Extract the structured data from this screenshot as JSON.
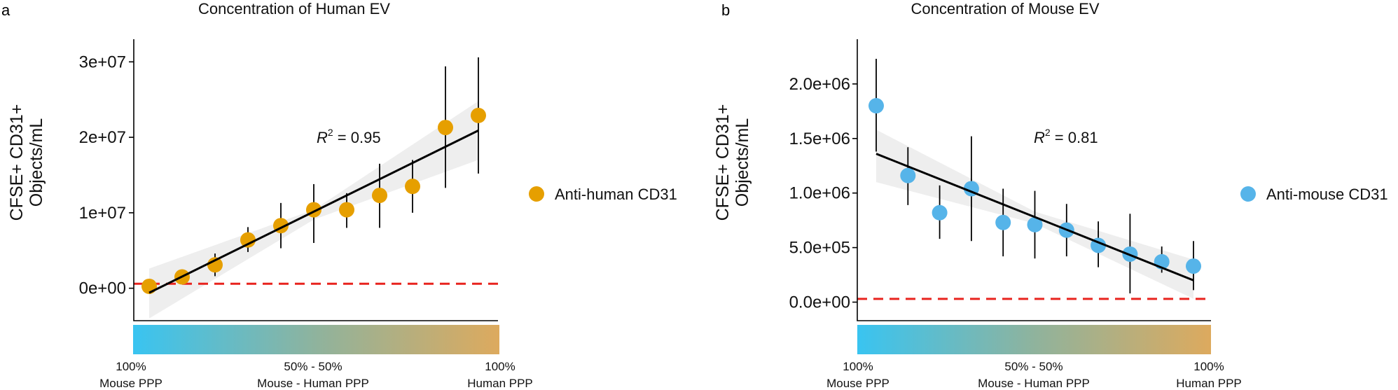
{
  "gradient_labels": {
    "left_line1": "100%",
    "left_line2": "Mouse PPP",
    "mid_line1": "50% - 50%",
    "mid_line2": "Mouse - Human PPP",
    "right_line1": "100%",
    "right_line2": "Human PPP"
  },
  "colors": {
    "human": "#E69F00",
    "mouse": "#56B4E9",
    "threshold": "#E8231E",
    "fit": "#000000",
    "ribbon": "#EBEBEB",
    "gradient_left": "#39C4F1",
    "gradient_mid": "#8FB39D",
    "gradient_right": "#DDAA5E"
  },
  "chart_data": [
    {
      "panel": "a",
      "type": "scatter",
      "title": "Concentration of Human EV",
      "ylabel_line1": "CFSE+ CD31+",
      "ylabel_line2": "Objects/mL",
      "xlabel": "",
      "ylim": [
        -4300000,
        33000000
      ],
      "yticks": [
        0,
        10000000,
        20000000,
        30000000
      ],
      "ytick_labels": [
        "0e+00",
        "1e+07",
        "2e+07",
        "3e+07"
      ],
      "legend": "Anti-human CD31",
      "r2_label": "0.95",
      "x": [
        1,
        2,
        3,
        4,
        5,
        6,
        7,
        8,
        9,
        10,
        11
      ],
      "values": [
        250000,
        1500000,
        3100000,
        6400000,
        8300000,
        10400000,
        10400000,
        12300000,
        13500000,
        21300000,
        22900000
      ],
      "err_low": [
        null,
        null,
        1600000,
        4800000,
        5300000,
        6000000,
        8000000,
        8000000,
        10000000,
        13300000,
        15200000
      ],
      "err_high": [
        null,
        null,
        4600000,
        8100000,
        11300000,
        13800000,
        12600000,
        16500000,
        17000000,
        29400000,
        30600000
      ],
      "fit_start": -600000,
      "fit_end": 20900000,
      "ribbon_start": [
        -4000000,
        2600000
      ],
      "ribbon_mid": [
        9100000,
        10400000
      ],
      "ribbon_end": [
        17000000,
        24800000
      ],
      "threshold": 600000
    },
    {
      "panel": "b",
      "type": "scatter",
      "title": "Concentration of Mouse EV",
      "ylabel_line1": "CFSE+ CD31+",
      "ylabel_line2": "Objects/mL",
      "xlabel": "",
      "ylim": [
        -170000,
        2410000
      ],
      "yticks": [
        0,
        500000,
        1000000,
        1500000,
        2000000
      ],
      "ytick_labels": [
        "0.0e+00",
        "5.0e+05",
        "1.0e+06",
        "1.5e+06",
        "2.0e+06"
      ],
      "legend": "Anti-mouse CD31",
      "r2_label": "0.81",
      "x": [
        1,
        2,
        3,
        4,
        5,
        6,
        7,
        8,
        9,
        10,
        11
      ],
      "values": [
        1800000,
        1160000,
        820000,
        1040000,
        730000,
        710000,
        660000,
        520000,
        440000,
        370000,
        330000
      ],
      "err_low": [
        1380000,
        890000,
        580000,
        560000,
        420000,
        400000,
        420000,
        320000,
        80000,
        270000,
        110000
      ],
      "err_high": [
        2230000,
        1420000,
        1070000,
        1520000,
        1040000,
        1020000,
        900000,
        740000,
        810000,
        510000,
        560000
      ],
      "fit_start": 1360000,
      "fit_end": 200000,
      "ribbon_start": [
        1100000,
        1580000
      ],
      "ribbon_mid": [
        720000,
        830000
      ],
      "ribbon_end": [
        30000,
        390000
      ],
      "threshold": 30000
    }
  ]
}
